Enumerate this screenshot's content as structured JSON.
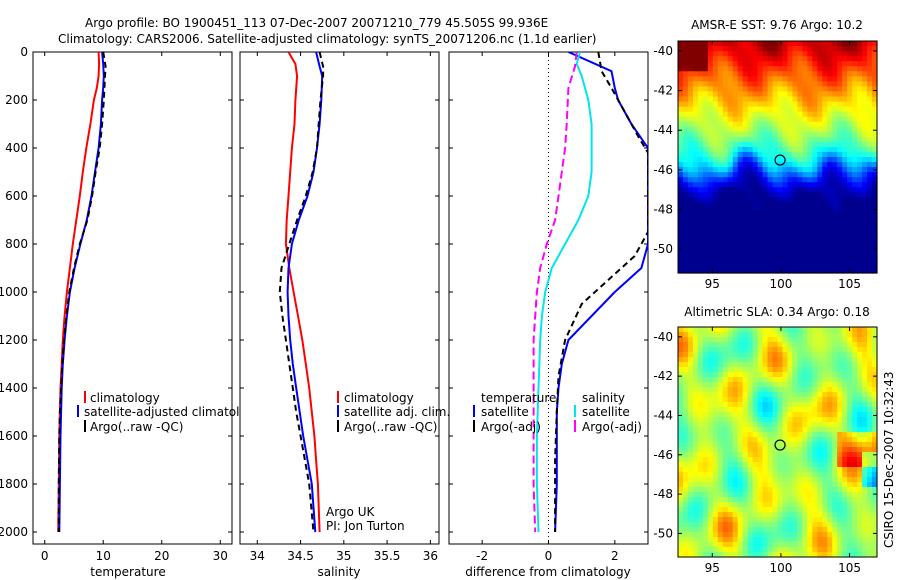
{
  "header": {
    "line1": "Argo profile: BO 1900451_113 07-Dec-2007 20071210_779 45.505S 99.936E",
    "line2": "Climatology: CARS2006. Satellite-adjusted climatology: synTS_20071206.nc (1.1d earlier)"
  },
  "credit": {
    "org": "Argo UK",
    "pi": "PI: Jon Turton",
    "stamp": "CSIRO 15-Dec-2007 10:32:43"
  },
  "colors": {
    "climatology": "#ff0000",
    "satellite": "#0000ff",
    "argo": "#000000",
    "satellite_salinity": "#00e5ee",
    "argo_salinity": "#ff00ff"
  },
  "chart_data": [
    {
      "id": "temp",
      "type": "line",
      "xlabel": "temperature",
      "ylabel": "",
      "xlim": [
        -2,
        32
      ],
      "ylim": [
        2050,
        0
      ],
      "xticks": [
        "0",
        "10",
        "20",
        "30"
      ],
      "xtick_values": [
        0,
        10,
        20,
        30
      ],
      "yticks": [
        "0",
        "200",
        "400",
        "600",
        "800",
        "1000",
        "1200",
        "1400",
        "1600",
        "1800",
        "2000"
      ],
      "ytick_values": [
        0,
        200,
        400,
        600,
        800,
        1000,
        1200,
        1400,
        1600,
        1800,
        2000
      ],
      "legend": [
        "climatology",
        "satellite-adjusted climatology",
        "Argo(..raw -QC)"
      ],
      "series": [
        {
          "name": "climatology",
          "color": "#ff0000",
          "dash": "",
          "points": [
            [
              9.2,
              0
            ],
            [
              9.3,
              50
            ],
            [
              9.2,
              100
            ],
            [
              8.9,
              150
            ],
            [
              8.4,
              200
            ],
            [
              7.8,
              300
            ],
            [
              7.1,
              400
            ],
            [
              6.5,
              500
            ],
            [
              6.0,
              600
            ],
            [
              5.4,
              700
            ],
            [
              4.8,
              800
            ],
            [
              4.3,
              900
            ],
            [
              3.8,
              1000
            ],
            [
              3.4,
              1100
            ],
            [
              3.1,
              1200
            ],
            [
              2.9,
              1300
            ],
            [
              2.7,
              1400
            ],
            [
              2.6,
              1500
            ],
            [
              2.5,
              1600
            ],
            [
              2.4,
              1800
            ],
            [
              2.3,
              2000
            ]
          ]
        },
        {
          "name": "satellite-adjusted climatology",
          "color": "#0000ff",
          "dash": "",
          "points": [
            [
              9.8,
              0
            ],
            [
              10.0,
              50
            ],
            [
              10.1,
              100
            ],
            [
              10.0,
              150
            ],
            [
              9.8,
              200
            ],
            [
              9.6,
              300
            ],
            [
              9.2,
              400
            ],
            [
              8.6,
              500
            ],
            [
              8.0,
              600
            ],
            [
              7.2,
              700
            ],
            [
              6.1,
              800
            ],
            [
              5.1,
              900
            ],
            [
              4.3,
              1000
            ],
            [
              3.8,
              1100
            ],
            [
              3.4,
              1200
            ],
            [
              3.1,
              1300
            ],
            [
              2.9,
              1400
            ],
            [
              2.8,
              1500
            ],
            [
              2.7,
              1600
            ],
            [
              2.6,
              1800
            ],
            [
              2.5,
              2000
            ]
          ]
        },
        {
          "name": "Argo(..raw -QC)",
          "color": "#000000",
          "dash": "6,4",
          "points": [
            [
              10.0,
              0
            ],
            [
              10.4,
              60
            ],
            [
              10.3,
              100
            ],
            [
              10.1,
              200
            ],
            [
              9.8,
              300
            ],
            [
              9.4,
              400
            ],
            [
              8.7,
              500
            ],
            [
              8.1,
              600
            ],
            [
              7.3,
              700
            ],
            [
              6.0,
              800
            ],
            [
              5.0,
              900
            ],
            [
              4.2,
              1000
            ],
            [
              3.7,
              1100
            ],
            [
              3.3,
              1200
            ],
            [
              3.0,
              1300
            ],
            [
              2.8,
              1400
            ],
            [
              2.6,
              1500
            ],
            [
              2.5,
              1600
            ],
            [
              2.4,
              1800
            ],
            [
              2.4,
              2000
            ]
          ]
        }
      ]
    },
    {
      "id": "salt",
      "type": "line",
      "xlabel": "salinity",
      "ylabel": "",
      "xlim": [
        33.8,
        36.1
      ],
      "ylim": [
        2050,
        0
      ],
      "xticks": [
        "34",
        "34.5",
        "35",
        "35.5",
        "36"
      ],
      "xtick_values": [
        34,
        34.5,
        35,
        35.5,
        36
      ],
      "legend": [
        "climatology",
        "satellite adj. clim.",
        "Argo(..raw -QC)"
      ],
      "series": [
        {
          "name": "climatology",
          "color": "#ff0000",
          "dash": "",
          "points": [
            [
              34.36,
              0
            ],
            [
              34.44,
              50
            ],
            [
              34.46,
              100
            ],
            [
              34.44,
              200
            ],
            [
              34.43,
              300
            ],
            [
              34.4,
              400
            ],
            [
              34.38,
              500
            ],
            [
              34.36,
              600
            ],
            [
              34.34,
              700
            ],
            [
              34.33,
              800
            ],
            [
              34.37,
              900
            ],
            [
              34.42,
              1000
            ],
            [
              34.47,
              1100
            ],
            [
              34.52,
              1200
            ],
            [
              34.56,
              1300
            ],
            [
              34.6,
              1400
            ],
            [
              34.63,
              1500
            ],
            [
              34.66,
              1600
            ],
            [
              34.68,
              1700
            ],
            [
              34.7,
              1800
            ],
            [
              34.72,
              2000
            ]
          ]
        },
        {
          "name": "satellite adj. clim.",
          "color": "#0000ff",
          "dash": "",
          "points": [
            [
              34.68,
              0
            ],
            [
              34.72,
              60
            ],
            [
              34.75,
              100
            ],
            [
              34.74,
              200
            ],
            [
              34.72,
              300
            ],
            [
              34.69,
              400
            ],
            [
              34.65,
              500
            ],
            [
              34.58,
              600
            ],
            [
              34.48,
              700
            ],
            [
              34.4,
              800
            ],
            [
              34.36,
              900
            ],
            [
              34.35,
              1000
            ],
            [
              34.36,
              1100
            ],
            [
              34.38,
              1200
            ],
            [
              34.41,
              1300
            ],
            [
              34.45,
              1400
            ],
            [
              34.49,
              1500
            ],
            [
              34.53,
              1600
            ],
            [
              34.58,
              1700
            ],
            [
              34.63,
              1800
            ],
            [
              34.67,
              2000
            ]
          ]
        },
        {
          "name": "Argo(..raw -QC)",
          "color": "#000000",
          "dash": "6,4",
          "points": [
            [
              34.72,
              0
            ],
            [
              34.76,
              60
            ],
            [
              34.76,
              100
            ],
            [
              34.73,
              200
            ],
            [
              34.71,
              300
            ],
            [
              34.69,
              400
            ],
            [
              34.64,
              500
            ],
            [
              34.56,
              600
            ],
            [
              34.46,
              700
            ],
            [
              34.37,
              800
            ],
            [
              34.28,
              900
            ],
            [
              34.26,
              1000
            ],
            [
              34.29,
              1100
            ],
            [
              34.33,
              1200
            ],
            [
              34.37,
              1300
            ],
            [
              34.41,
              1400
            ],
            [
              34.45,
              1500
            ],
            [
              34.5,
              1600
            ],
            [
              34.55,
              1700
            ],
            [
              34.6,
              1800
            ],
            [
              34.65,
              2000
            ]
          ]
        }
      ]
    },
    {
      "id": "diff",
      "type": "line",
      "xlabel": "difference from climatology",
      "ylabel": "",
      "xlim": [
        -3,
        3
      ],
      "ylim": [
        2050,
        0
      ],
      "xticks": [
        "-2",
        "0",
        "2"
      ],
      "xtick_values": [
        -2,
        0,
        2
      ],
      "legend": [
        "temperature",
        "satellite",
        "Argo(-adj)",
        "salinity",
        "satellite",
        "Argo(-adj)"
      ],
      "series": [
        {
          "name": "satellite",
          "group": "temperature",
          "color": "#0000ff",
          "dash": "",
          "points": [
            [
              0.6,
              0
            ],
            [
              1.9,
              80
            ],
            [
              2.0,
              150
            ],
            [
              2.1,
              200
            ],
            [
              2.5,
              300
            ],
            [
              3.0,
              400
            ],
            [
              3.0,
              800
            ],
            [
              2.8,
              900
            ],
            [
              2.0,
              1000
            ],
            [
              1.3,
              1100
            ],
            [
              0.6,
              1200
            ],
            [
              0.4,
              1300
            ],
            [
              0.3,
              1400
            ],
            [
              0.25,
              1500
            ],
            [
              0.25,
              1600
            ],
            [
              0.25,
              1800
            ],
            [
              0.2,
              2000
            ]
          ]
        },
        {
          "name": "Argo(-adj)",
          "group": "temperature",
          "color": "#000000",
          "dash": "6,4",
          "points": [
            [
              1.5,
              0
            ],
            [
              1.6,
              80
            ],
            [
              1.9,
              150
            ],
            [
              2.3,
              250
            ],
            [
              2.7,
              350
            ],
            [
              3.0,
              420
            ],
            [
              3.0,
              750
            ],
            [
              2.6,
              850
            ],
            [
              1.8,
              950
            ],
            [
              1.0,
              1050
            ],
            [
              0.5,
              1200
            ],
            [
              0.3,
              1350
            ],
            [
              0.25,
              1500
            ],
            [
              0.2,
              1700
            ],
            [
              0.2,
              2000
            ]
          ]
        },
        {
          "name": "satellite",
          "group": "salinity",
          "color": "#00e5ee",
          "dash": "",
          "points": [
            [
              0.95,
              0
            ],
            [
              0.85,
              50
            ],
            [
              1.0,
              100
            ],
            [
              1.2,
              200
            ],
            [
              1.3,
              300
            ],
            [
              1.3,
              500
            ],
            [
              1.2,
              600
            ],
            [
              0.9,
              700
            ],
            [
              0.5,
              800
            ],
            [
              0.1,
              900
            ],
            [
              -0.1,
              1000
            ],
            [
              -0.2,
              1100
            ],
            [
              -0.25,
              1200
            ],
            [
              -0.3,
              1400
            ],
            [
              -0.35,
              1600
            ],
            [
              -0.35,
              1800
            ],
            [
              -0.3,
              2000
            ]
          ]
        },
        {
          "name": "Argo(-adj)",
          "group": "salinity",
          "color": "#ff00ff",
          "dash": "8,4",
          "points": [
            [
              0.85,
              0
            ],
            [
              0.8,
              60
            ],
            [
              0.6,
              150
            ],
            [
              0.55,
              300
            ],
            [
              0.5,
              400
            ],
            [
              0.4,
              500
            ],
            [
              0.3,
              600
            ],
            [
              0.2,
              700
            ],
            [
              -0.05,
              800
            ],
            [
              -0.25,
              900
            ],
            [
              -0.35,
              1000
            ],
            [
              -0.4,
              1100
            ],
            [
              -0.45,
              1200
            ],
            [
              -0.45,
              1400
            ],
            [
              -0.45,
              1600
            ],
            [
              -0.45,
              1800
            ],
            [
              -0.4,
              2000
            ]
          ]
        }
      ]
    },
    {
      "id": "sst_map",
      "type": "heatmap",
      "title": "AMSR-E SST: 9.76 Argo: 10.2",
      "xlim": [
        92.5,
        107
      ],
      "ylim": [
        -51.2,
        -39.5
      ],
      "xticks": [
        "95",
        "100",
        "105"
      ],
      "xtick_values": [
        95,
        100,
        105
      ],
      "yticks": [
        "-40",
        "-42",
        "-44",
        "-46",
        "-48",
        "-50"
      ],
      "ytick_values": [
        -40,
        -42,
        -44,
        -46,
        -48,
        -50
      ],
      "marker": [
        99.936,
        -45.505
      ]
    },
    {
      "id": "sla_map",
      "type": "heatmap",
      "title": "Altimetric SLA: 0.34 Argo: 0.18",
      "xlim": [
        92.5,
        107
      ],
      "ylim": [
        -51.2,
        -39.5
      ],
      "xticks": [
        "95",
        "100",
        "105"
      ],
      "xtick_values": [
        95,
        100,
        105
      ],
      "yticks": [
        "-40",
        "-42",
        "-44",
        "-46",
        "-48",
        "-50"
      ],
      "ytick_values": [
        -40,
        -42,
        -44,
        -46,
        -48,
        -50
      ],
      "marker": [
        99.936,
        -45.505
      ]
    }
  ]
}
